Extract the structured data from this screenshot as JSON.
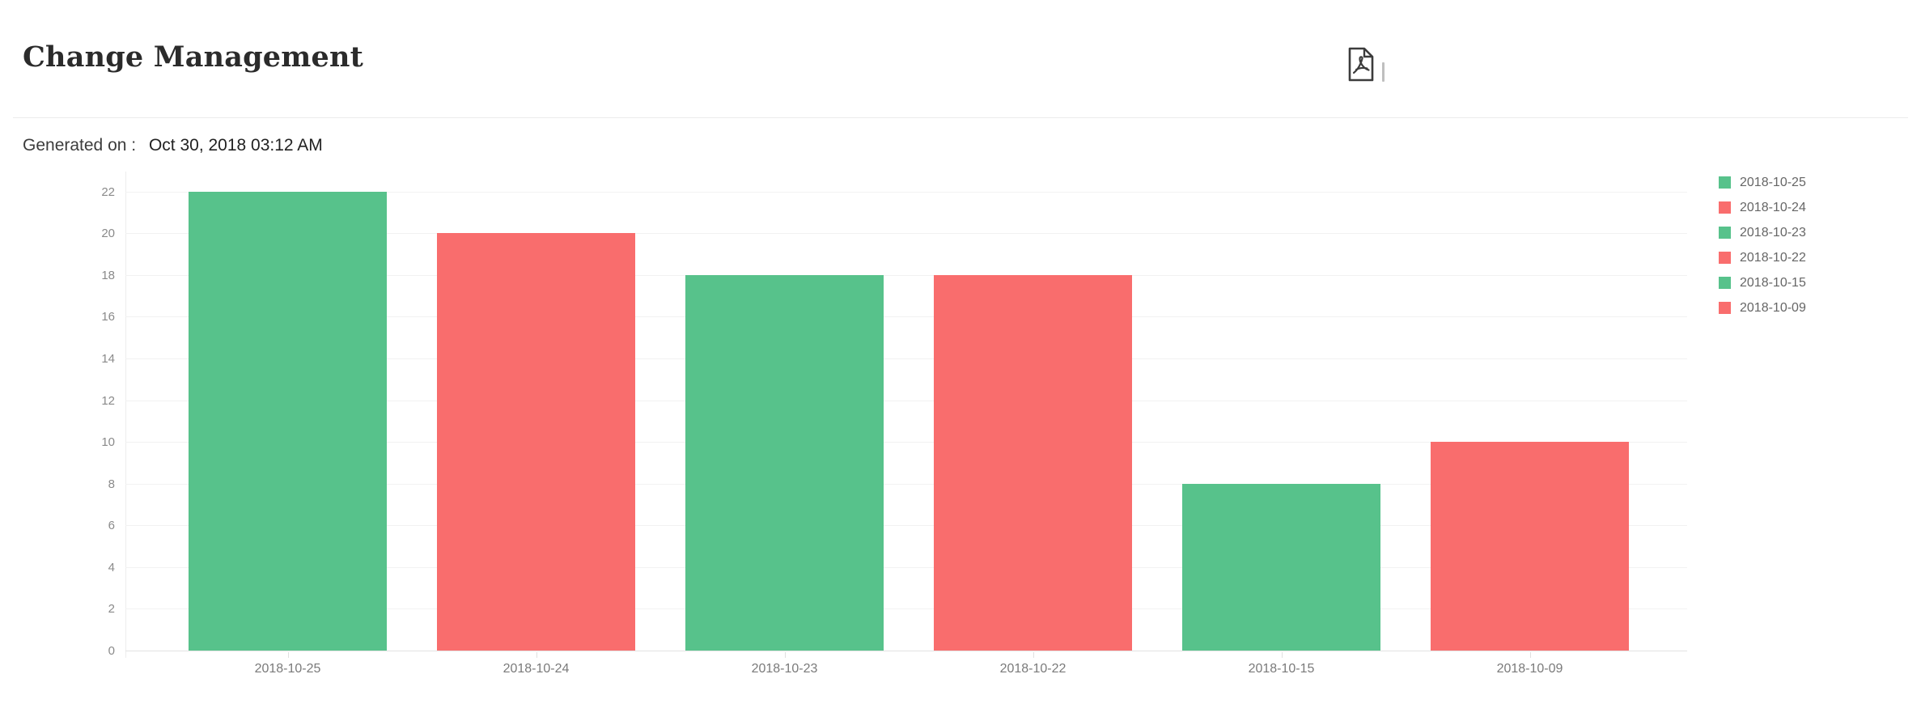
{
  "header": {
    "title": "Change Management"
  },
  "toolbar": {
    "export_pdf_icon": "pdf-file-icon"
  },
  "generated": {
    "label": "Generated on :",
    "value": "Oct 30, 2018 03:12 AM"
  },
  "chart_data": {
    "type": "bar",
    "title": "Change Management",
    "categories": [
      "2018-10-25",
      "2018-10-24",
      "2018-10-23",
      "2018-10-22",
      "2018-10-15",
      "2018-10-09"
    ],
    "values": [
      22,
      20,
      18,
      18,
      8,
      10
    ],
    "bar_colors": [
      "#57c28b",
      "#f96d6d",
      "#57c28b",
      "#f96d6d",
      "#57c28b",
      "#f96d6d"
    ],
    "xlabel": "",
    "ylabel": "",
    "y_ticks": [
      0,
      2,
      4,
      6,
      8,
      10,
      12,
      14,
      16,
      18,
      20,
      22
    ],
    "ylim": [
      0,
      23
    ],
    "grid": true,
    "legend": {
      "position": "right",
      "entries": [
        {
          "label": "2018-10-25",
          "color": "#57c28b"
        },
        {
          "label": "2018-10-24",
          "color": "#f96d6d"
        },
        {
          "label": "2018-10-23",
          "color": "#57c28b"
        },
        {
          "label": "2018-10-22",
          "color": "#f96d6d"
        },
        {
          "label": "2018-10-15",
          "color": "#57c28b"
        },
        {
          "label": "2018-10-09",
          "color": "#f96d6d"
        }
      ]
    }
  },
  "colors": {
    "bar_green": "#57c28b",
    "bar_red": "#f96d6d",
    "gridline": "#f2f2f2",
    "baseline": "#e3e3e3",
    "axis_text": "#8a8a8a",
    "x_label_text": "#7a7a7a",
    "legend_text": "#666666",
    "title_text": "#2b2b2b",
    "divider": "#ececec"
  }
}
